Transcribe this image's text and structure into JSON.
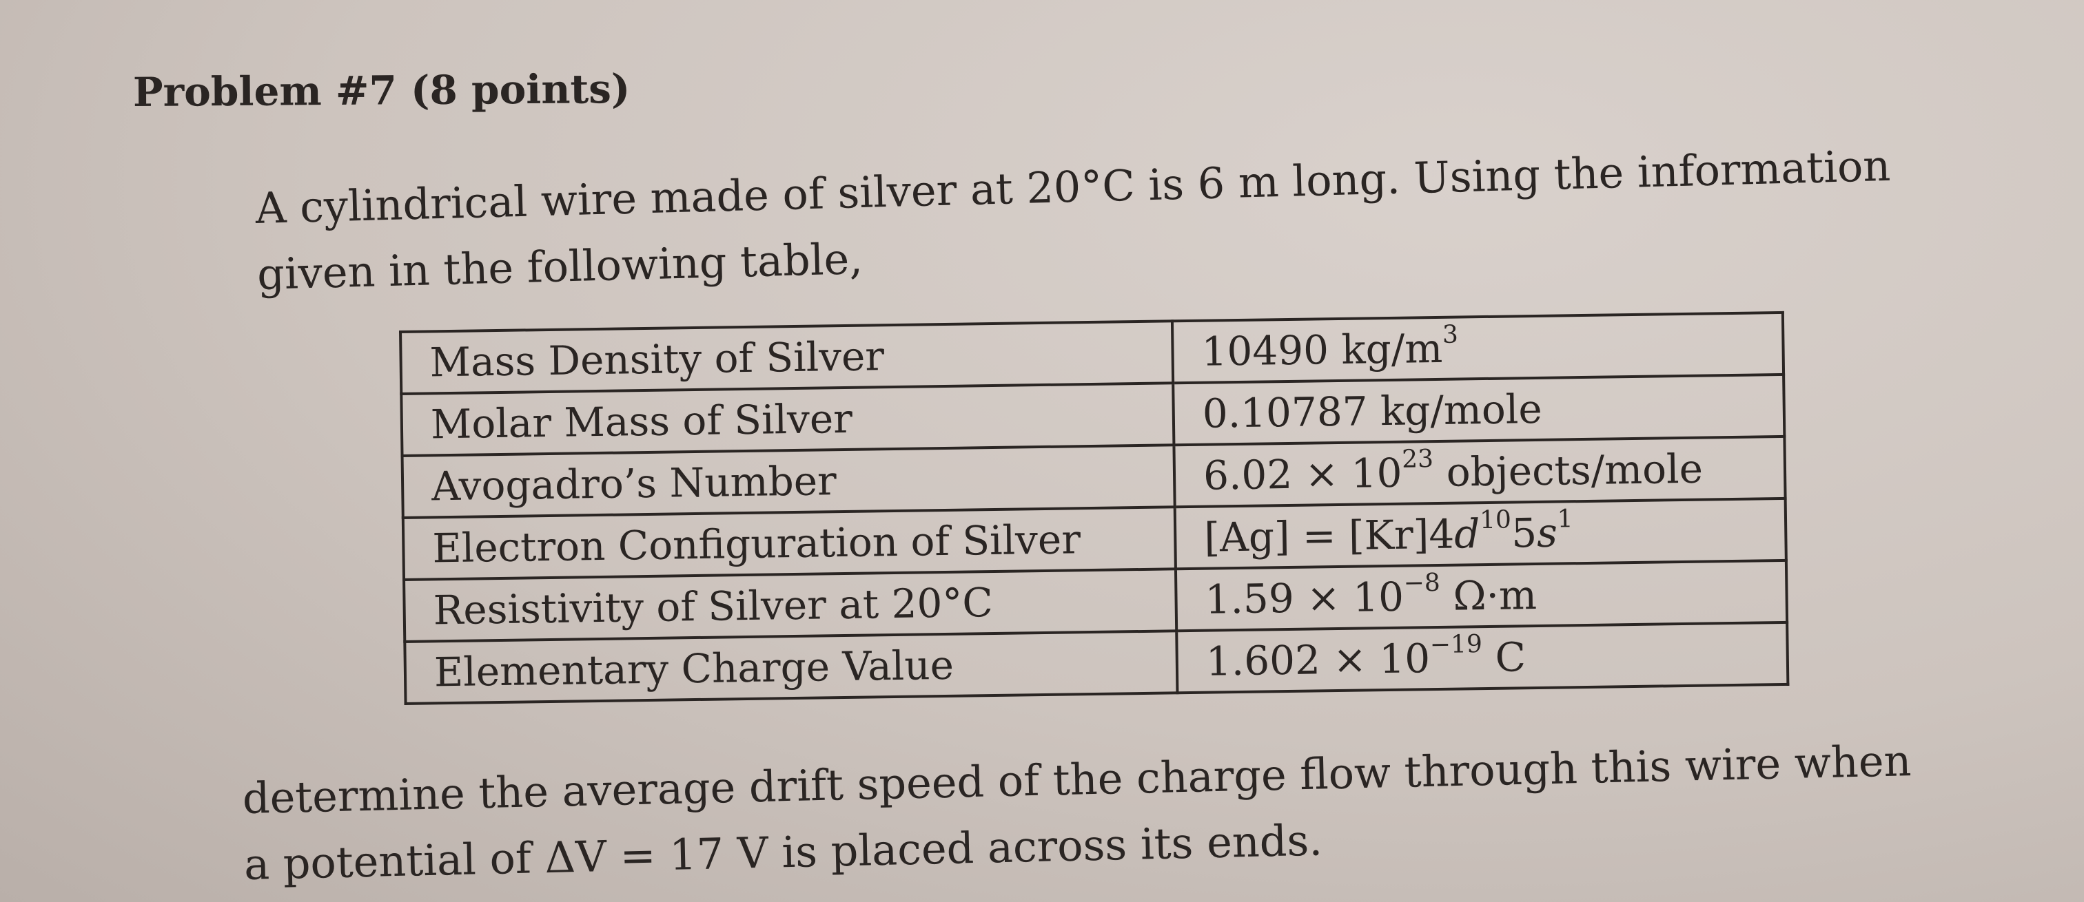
{
  "title": "Problem #7 (8 points)",
  "intro": [
    "A cylindrical wire made of silver at 20°C is 6 m long. Using the information",
    "given in the following table,"
  ],
  "table": [
    {
      "label": "Mass Density of Silver",
      "value": [
        {
          "t": "10490 kg/m"
        },
        {
          "sup": "3"
        }
      ]
    },
    {
      "label": "Molar Mass of Silver",
      "value": [
        {
          "t": "0.10787 kg/mole"
        }
      ]
    },
    {
      "label": "Avogadro’s Number",
      "value": [
        {
          "t": "6.02 × 10"
        },
        {
          "sup": "23"
        },
        {
          "t": " objects/mole"
        }
      ]
    },
    {
      "label": "Electron Configuration of Silver",
      "value": [
        {
          "t": "[Ag] = [Kr]4"
        },
        {
          "i": "d"
        },
        {
          "sup": "10"
        },
        {
          "t": "5"
        },
        {
          "i": "s"
        },
        {
          "sup": "1"
        }
      ]
    },
    {
      "label": "Resistivity of Silver at 20°C",
      "value": [
        {
          "t": "1.59 × 10"
        },
        {
          "sup": "−8"
        },
        {
          "t": " Ω·m"
        }
      ]
    },
    {
      "label": "Elementary Charge Value",
      "value": [
        {
          "t": "1.602 × 10"
        },
        {
          "sup": "−19"
        },
        {
          "t": " C"
        }
      ]
    }
  ],
  "question": [
    "determine the average drift speed of the charge flow through this wire when",
    "a potential of ΔV = 17 V is placed across its ends."
  ]
}
